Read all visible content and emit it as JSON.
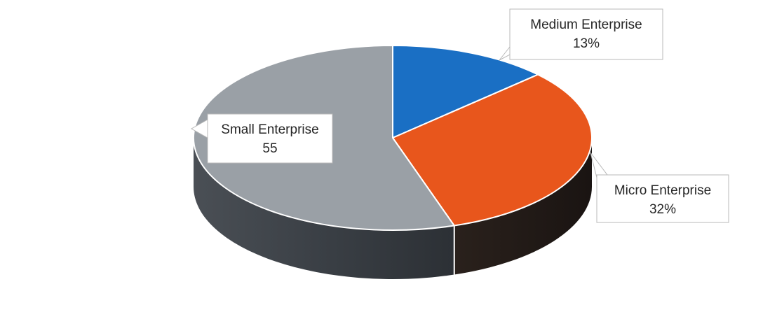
{
  "chart_data": {
    "type": "pie",
    "title": "",
    "slices": [
      {
        "name": "Medium Enterprise",
        "value": 13,
        "value_label": "13%",
        "color": "#1a6fc4"
      },
      {
        "name": "Micro Enterprise",
        "value": 32,
        "value_label": "32%",
        "color": "#e8561c"
      },
      {
        "name": "Small Enterprise",
        "value": 55,
        "value_label": "55",
        "color": "#9aa0a6"
      }
    ],
    "style": "3d",
    "legend": "none",
    "data_labels": "callouts"
  }
}
